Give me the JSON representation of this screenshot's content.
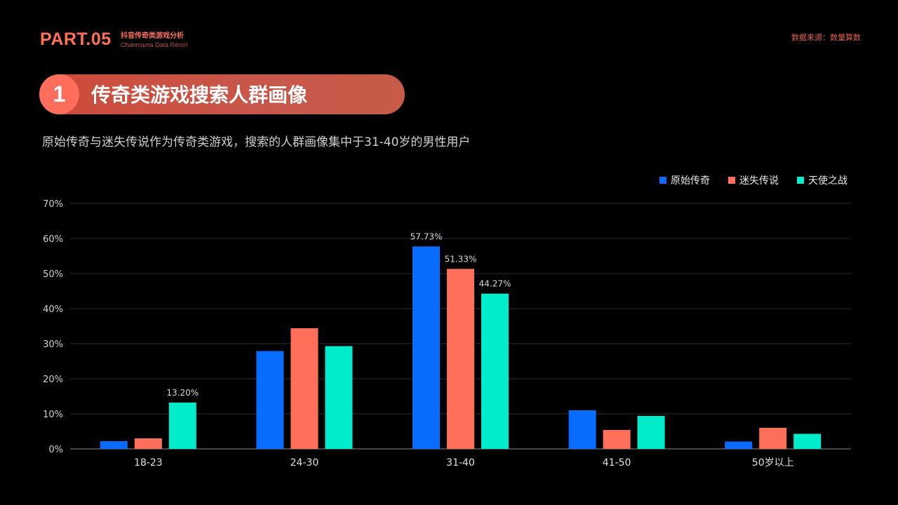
{
  "header": {
    "part": "PART.05",
    "title_cn": "抖音传奇类游戏分析",
    "title_en": "Chanmama Data Rerort",
    "source": "数据来源：数量算数"
  },
  "section": {
    "number": "1",
    "title": "传奇类游戏搜索人群画像",
    "subtitle": "原始传奇与迷失传说作为传奇类游戏，搜索的人群画像集中于31-40岁的男性用户"
  },
  "colors": {
    "series1": "#0a6cff",
    "series2": "#ff6f5a",
    "series3": "#00eccc",
    "accent": "#ff6f5a"
  },
  "chart_data": {
    "type": "bar",
    "categories": [
      "18-23",
      "24-30",
      "31-40",
      "41-50",
      "50岁以上"
    ],
    "series": [
      {
        "name": "原始传奇",
        "values": [
          2.2,
          27.9,
          57.73,
          11.0,
          2.1
        ]
      },
      {
        "name": "迷失传说",
        "values": [
          3.0,
          34.4,
          51.33,
          5.4,
          6.0
        ]
      },
      {
        "name": "天使之战",
        "values": [
          13.2,
          29.3,
          44.27,
          9.4,
          4.3
        ]
      }
    ],
    "data_labels": [
      {
        "series": 2,
        "category": 0,
        "text": "13.20%"
      },
      {
        "series": 0,
        "category": 2,
        "text": "57.73%"
      },
      {
        "series": 1,
        "category": 2,
        "text": "51.33%"
      },
      {
        "series": 2,
        "category": 2,
        "text": "44.27%"
      }
    ],
    "yticks": [
      "0%",
      "10%",
      "20%",
      "30%",
      "40%",
      "50%",
      "60%",
      "70%"
    ],
    "ylim": [
      0,
      70
    ],
    "grid": true,
    "legend_position": "top-right"
  }
}
